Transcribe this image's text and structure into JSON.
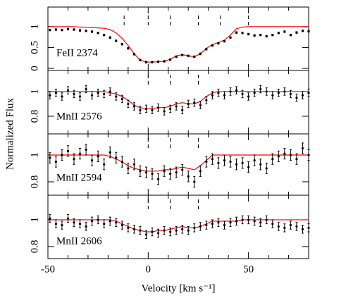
{
  "chart_data": {
    "type": "line",
    "xlabel": "Velocity [km s⁻¹]",
    "ylabel": "Normalized Flux",
    "xlim": [
      -50,
      80
    ],
    "xticks": [
      -50,
      0,
      50
    ],
    "xminorticks": [
      -40,
      -30,
      -20,
      -10,
      10,
      20,
      30,
      40,
      60,
      70
    ],
    "x": [
      -49,
      -46,
      -43,
      -40,
      -37,
      -34,
      -31,
      -28,
      -25,
      -22,
      -19,
      -16,
      -13,
      -10,
      -7,
      -4,
      -1,
      2,
      5,
      8,
      11,
      14,
      17,
      20,
      23,
      26,
      29,
      32,
      35,
      38,
      41,
      44,
      47,
      50,
      53,
      56,
      59,
      62,
      65,
      68,
      71,
      74,
      77,
      80
    ],
    "data_color": "#000000",
    "model_color": "#ff0000",
    "panels": [
      {
        "label": "FeII 2374",
        "ylim": [
          -0.05,
          1.47
        ],
        "yticks": [
          0,
          0.5,
          1
        ],
        "error": 0.02,
        "components": [
          -12,
          0,
          11,
          25,
          36,
          50
        ],
        "values": [
          0.92,
          0.93,
          0.92,
          0.94,
          0.93,
          0.91,
          0.9,
          0.88,
          0.85,
          0.8,
          0.74,
          0.66,
          0.58,
          0.48,
          0.34,
          0.2,
          0.15,
          0.15,
          0.16,
          0.17,
          0.21,
          0.28,
          0.32,
          0.3,
          0.28,
          0.35,
          0.46,
          0.55,
          0.6,
          0.65,
          0.74,
          0.86,
          0.85,
          0.82,
          0.79,
          0.8,
          0.77,
          0.8,
          0.85,
          0.88,
          0.8,
          0.86,
          0.9,
          0.89
        ],
        "model": [
          1.0,
          1.0,
          1.0,
          1.0,
          1.0,
          0.99,
          0.99,
          0.98,
          0.97,
          0.96,
          0.93,
          0.85,
          0.72,
          0.55,
          0.35,
          0.2,
          0.15,
          0.15,
          0.16,
          0.17,
          0.22,
          0.3,
          0.33,
          0.3,
          0.28,
          0.35,
          0.48,
          0.57,
          0.62,
          0.68,
          0.8,
          0.95,
          0.99,
          1.0,
          1.0,
          1.0,
          1.0,
          1.0,
          1.0,
          1.0,
          1.0,
          1.0,
          1.0,
          1.0
        ]
      },
      {
        "label": "MnII 2576",
        "ylim": [
          0.657,
          1.171
        ],
        "yticks": [
          0.8,
          1
        ],
        "error": 0.03,
        "components": [
          0,
          11,
          25
        ],
        "values": [
          0.97,
          0.99,
          0.96,
          1.01,
          0.98,
          0.96,
          1.02,
          0.97,
          0.99,
          0.98,
          1.0,
          0.96,
          0.94,
          0.9,
          0.88,
          0.85,
          0.86,
          0.85,
          0.87,
          0.84,
          0.86,
          0.88,
          0.85,
          0.9,
          0.91,
          0.89,
          0.93,
          0.97,
          0.99,
          0.97,
          1.0,
          1.01,
          0.98,
          0.96,
          0.99,
          1.02,
          1.0,
          0.97,
          0.99,
          1.0,
          0.98,
          0.95,
          0.97,
          0.99
        ],
        "model": [
          1.0,
          1.0,
          1.0,
          1.0,
          1.0,
          1.0,
          1.0,
          1.0,
          1.0,
          1.0,
          0.99,
          0.98,
          0.96,
          0.93,
          0.89,
          0.87,
          0.86,
          0.86,
          0.87,
          0.87,
          0.88,
          0.9,
          0.91,
          0.9,
          0.9,
          0.92,
          0.96,
          0.99,
          1.0,
          1.0,
          1.0,
          1.0,
          1.0,
          1.0,
          1.0,
          1.0,
          1.0,
          1.0,
          1.0,
          1.0,
          1.0,
          1.0,
          1.0,
          1.0
        ]
      },
      {
        "label": "MnII 2594",
        "ylim": [
          0.7,
          1.158
        ],
        "yticks": [
          0.8,
          1
        ],
        "error": 0.04,
        "components": [
          0,
          11,
          25
        ],
        "values": [
          0.98,
          0.95,
          1.0,
          1.03,
          0.97,
          1.01,
          1.04,
          0.96,
          0.99,
          0.93,
          1.02,
          0.98,
          0.95,
          0.9,
          0.93,
          0.88,
          0.87,
          0.86,
          0.82,
          0.88,
          0.86,
          0.87,
          0.89,
          0.84,
          0.8,
          0.88,
          0.95,
          0.97,
          0.94,
          0.96,
          0.95,
          0.93,
          0.94,
          0.91,
          0.96,
          0.93,
          0.9,
          0.97,
          0.99,
          1.01,
          1.0,
          0.97,
          1.05,
          1.0
        ],
        "model": [
          1.0,
          1.0,
          1.0,
          1.0,
          1.0,
          1.0,
          1.0,
          1.0,
          1.0,
          1.0,
          0.99,
          0.97,
          0.95,
          0.92,
          0.9,
          0.89,
          0.88,
          0.88,
          0.88,
          0.89,
          0.89,
          0.9,
          0.91,
          0.9,
          0.89,
          0.92,
          0.96,
          1.0,
          1.0,
          1.0,
          1.0,
          1.0,
          1.0,
          1.0,
          1.0,
          1.0,
          1.0,
          1.0,
          1.0,
          1.0,
          1.0,
          1.0,
          1.0,
          1.0
        ]
      },
      {
        "label": "MnII 2606",
        "ylim": [
          0.71,
          1.184
        ],
        "yticks": [
          0.8,
          1
        ],
        "error": 0.03,
        "components": [
          0,
          11,
          25
        ],
        "values": [
          1.01,
          0.97,
          0.96,
          1.01,
          0.98,
          0.97,
          0.95,
          0.99,
          1.0,
          0.97,
          0.99,
          0.98,
          0.96,
          0.94,
          0.93,
          0.92,
          0.89,
          0.91,
          0.9,
          0.92,
          0.91,
          0.92,
          0.93,
          0.92,
          0.94,
          0.95,
          0.96,
          0.97,
          0.98,
          0.96,
          0.98,
          0.99,
          1.0,
          1.0,
          0.99,
          0.98,
          1.0,
          0.97,
          0.95,
          0.94,
          0.96,
          0.95,
          0.93,
          0.94
        ],
        "model": [
          1.0,
          1.0,
          1.0,
          1.0,
          1.0,
          1.0,
          1.0,
          1.0,
          1.0,
          1.0,
          1.0,
          0.99,
          0.97,
          0.95,
          0.93,
          0.92,
          0.91,
          0.91,
          0.92,
          0.92,
          0.93,
          0.94,
          0.95,
          0.94,
          0.94,
          0.95,
          0.97,
          0.99,
          0.99,
          0.99,
          0.99,
          0.99,
          1.0,
          1.0,
          1.0,
          1.0,
          1.0,
          1.0,
          1.0,
          1.0,
          1.0,
          1.0,
          1.0,
          1.0
        ]
      }
    ]
  }
}
